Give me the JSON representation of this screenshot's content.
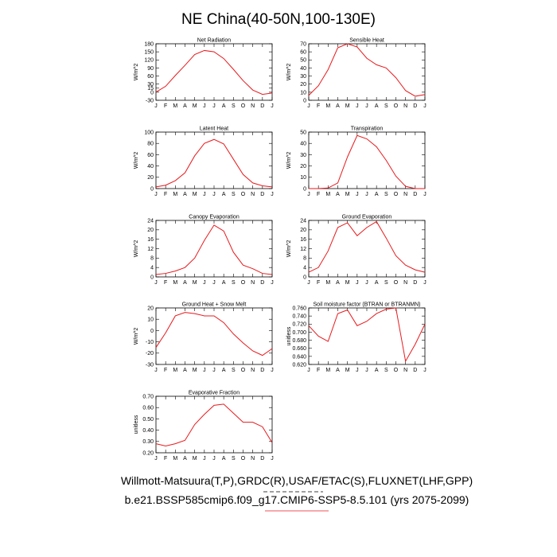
{
  "figure": {
    "title": "NE China(40-50N,100-130E)",
    "footer_line1": "Willmott-Matsuura(T,P),GRDC(R),USAF/ETAC(S),FLUXNET(LHF,GPP)",
    "footer_line2": "b.e21.BSSP585cmip6.f09_g17.CMIP6-SSP5-8.5.101 (yrs 2075-2099)",
    "series_color": "#e8191c"
  },
  "chart_data": [
    {
      "type": "line",
      "title": "Net Radiation",
      "ylabel": "W/m^2",
      "categories": [
        "J",
        "F",
        "M",
        "A",
        "M",
        "J",
        "J",
        "A",
        "S",
        "O",
        "N",
        "D",
        "J"
      ],
      "values": [
        0,
        22,
        62,
        100,
        140,
        155,
        150,
        125,
        85,
        43,
        8,
        -8,
        -3
      ],
      "ylim": [
        -30,
        180
      ],
      "yticks": [
        -30,
        0,
        15,
        30,
        60,
        90,
        120,
        150,
        180
      ],
      "ytick_labels": [
        "-30",
        "0",
        "15",
        "30",
        "60",
        "90",
        "120",
        "150",
        "180"
      ]
    },
    {
      "type": "line",
      "title": "Sensible Heat",
      "ylabel": "W/m^2",
      "categories": [
        "J",
        "F",
        "M",
        "A",
        "M",
        "J",
        "J",
        "A",
        "S",
        "O",
        "N",
        "D",
        "J"
      ],
      "values": [
        6,
        18,
        38,
        65,
        70,
        66,
        52,
        44,
        40,
        28,
        12,
        5,
        7
      ],
      "ylim": [
        0,
        70
      ],
      "yticks": [
        0,
        10,
        20,
        30,
        40,
        50,
        60,
        70
      ],
      "ytick_labels": [
        "0",
        "10",
        "20",
        "30",
        "40",
        "50",
        "60",
        "70"
      ]
    },
    {
      "type": "line",
      "title": "Latent Heat",
      "ylabel": "W/m^2",
      "categories": [
        "J",
        "F",
        "M",
        "A",
        "M",
        "J",
        "J",
        "A",
        "S",
        "O",
        "N",
        "D",
        "J"
      ],
      "values": [
        3,
        6,
        14,
        28,
        58,
        80,
        87,
        79,
        52,
        25,
        10,
        5,
        3
      ],
      "ylim": [
        0,
        100
      ],
      "yticks": [
        0,
        20,
        40,
        60,
        80,
        100
      ],
      "ytick_labels": [
        "0",
        "20",
        "40",
        "60",
        "80",
        "100"
      ]
    },
    {
      "type": "line",
      "title": "Transpiration",
      "ylabel": "W/m^2",
      "categories": [
        "J",
        "F",
        "M",
        "A",
        "M",
        "J",
        "J",
        "A",
        "S",
        "O",
        "N",
        "D",
        "J"
      ],
      "values": [
        0,
        0,
        0.5,
        5,
        28,
        47,
        44,
        37,
        25,
        11,
        2,
        0,
        0
      ],
      "ylim": [
        0,
        50
      ],
      "yticks": [
        0,
        10,
        20,
        30,
        40,
        50
      ],
      "ytick_labels": [
        "0",
        "10",
        "20",
        "30",
        "40",
        "50"
      ]
    },
    {
      "type": "line",
      "title": "Canopy Evaporation",
      "ylabel": "W/m^2",
      "categories": [
        "J",
        "F",
        "M",
        "A",
        "M",
        "J",
        "J",
        "A",
        "S",
        "O",
        "N",
        "D",
        "J"
      ],
      "values": [
        1,
        1.5,
        2.5,
        4,
        8,
        15.5,
        22,
        19.5,
        10.5,
        5,
        3.5,
        1.5,
        1
      ],
      "ylim": [
        0,
        24
      ],
      "yticks": [
        0,
        4,
        8,
        12,
        16,
        20,
        24
      ],
      "ytick_labels": [
        "0",
        "4",
        "8",
        "12",
        "16",
        "20",
        "24"
      ]
    },
    {
      "type": "line",
      "title": "Ground Evaporation",
      "ylabel": "W/m^2",
      "categories": [
        "J",
        "F",
        "M",
        "A",
        "M",
        "J",
        "J",
        "A",
        "S",
        "O",
        "N",
        "D",
        "J"
      ],
      "values": [
        2,
        4,
        11,
        21,
        23,
        17.5,
        21,
        23.5,
        16.5,
        9,
        5,
        3,
        2
      ],
      "ylim": [
        0,
        24
      ],
      "yticks": [
        0,
        4,
        8,
        12,
        16,
        20,
        24
      ],
      "ytick_labels": [
        "0",
        "4",
        "8",
        "12",
        "16",
        "20",
        "24"
      ]
    },
    {
      "type": "line",
      "title": "Ground Heat + Snow Melt",
      "ylabel": "W/m^2",
      "categories": [
        "J",
        "F",
        "M",
        "A",
        "M",
        "J",
        "J",
        "A",
        "S",
        "O",
        "N",
        "D",
        "J"
      ],
      "values": [
        -15,
        -2,
        13,
        16,
        15,
        13,
        13,
        7,
        -3,
        -11,
        -18,
        -22,
        -16
      ],
      "ylim": [
        -30,
        20
      ],
      "yticks": [
        -30,
        -20,
        -10,
        0,
        10,
        20
      ],
      "ytick_labels": [
        "-30",
        "-20",
        "-10",
        "0",
        "10",
        "20"
      ]
    },
    {
      "type": "line",
      "title": "Soil moisture factor (BTRAN or BTRANMN)",
      "ylabel": "unitless",
      "categories": [
        "J",
        "F",
        "M",
        "A",
        "M",
        "J",
        "J",
        "A",
        "S",
        "O",
        "N",
        "D",
        "J"
      ],
      "values": [
        0.716,
        0.69,
        0.677,
        0.746,
        0.755,
        0.716,
        0.727,
        0.746,
        0.757,
        0.76,
        0.628,
        0.67,
        0.72
      ],
      "ylim": [
        0.62,
        0.76
      ],
      "yticks": [
        0.62,
        0.64,
        0.66,
        0.68,
        0.7,
        0.72,
        0.74,
        0.76
      ],
      "ytick_labels": [
        "0.620",
        "0.640",
        "0.660",
        "0.680",
        "0.700",
        "0.720",
        "0.740",
        "0.760"
      ]
    },
    {
      "type": "line",
      "title": "Evaporative Fraction",
      "ylabel": "unitless",
      "categories": [
        "J",
        "F",
        "M",
        "A",
        "M",
        "J",
        "J",
        "A",
        "S",
        "O",
        "N",
        "D",
        "J"
      ],
      "values": [
        0.28,
        0.26,
        0.28,
        0.31,
        0.45,
        0.54,
        0.62,
        0.63,
        0.55,
        0.47,
        0.47,
        0.43,
        0.29
      ],
      "ylim": [
        0.2,
        0.7
      ],
      "yticks": [
        0.2,
        0.3,
        0.4,
        0.5,
        0.6,
        0.7
      ],
      "ytick_labels": [
        "0.20",
        "0.30",
        "0.40",
        "0.50",
        "0.60",
        "0.70"
      ]
    }
  ]
}
